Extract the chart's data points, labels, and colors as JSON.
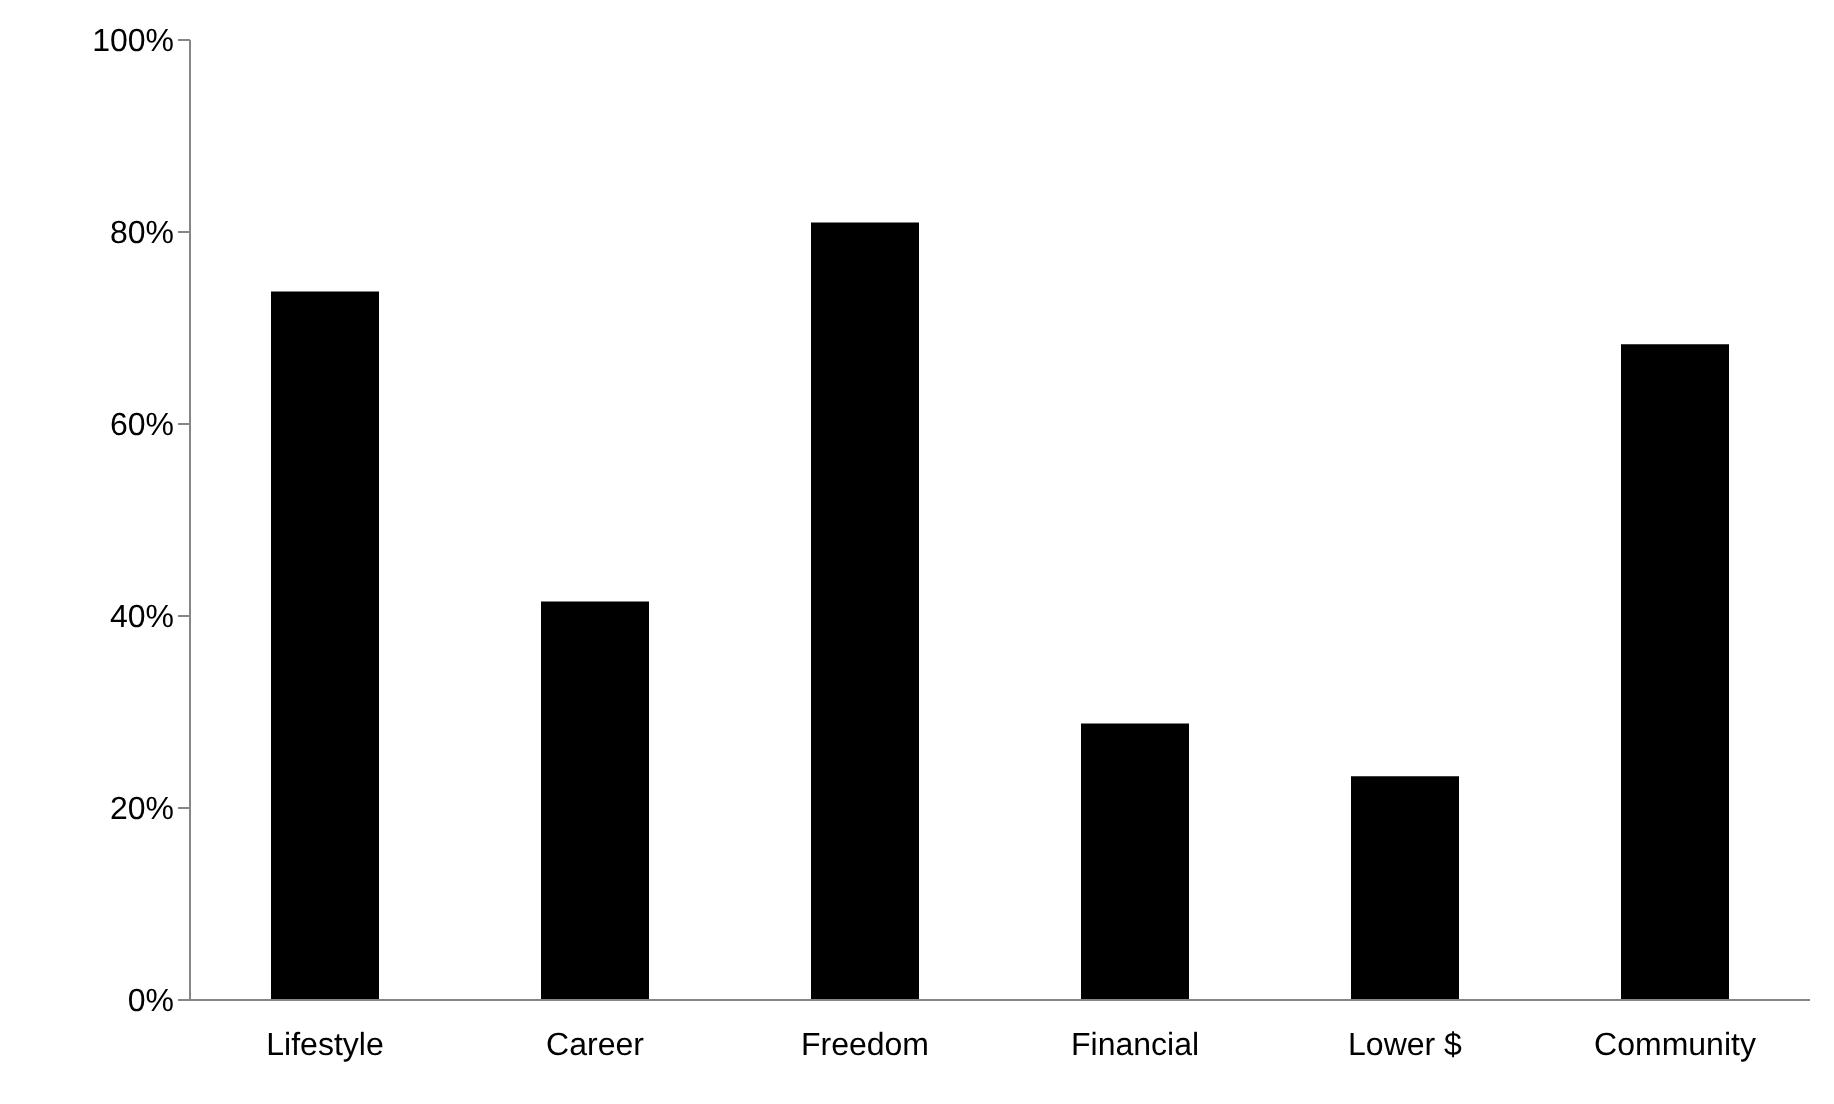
{
  "chart_data": {
    "type": "bar",
    "categories": [
      "Lifestyle",
      "Career",
      "Freedom",
      "Financial",
      "Lower $",
      "Community"
    ],
    "values": [
      73.8,
      41.5,
      81,
      28.8,
      23.3,
      68.3
    ],
    "color": "#000000",
    "ylim": [
      0,
      100
    ],
    "yticks": [
      {
        "value": 0,
        "label": "0%"
      },
      {
        "value": 20,
        "label": "20%"
      },
      {
        "value": 40,
        "label": "40%"
      },
      {
        "value": 60,
        "label": "60%"
      },
      {
        "value": 80,
        "label": "80%"
      },
      {
        "value": 100,
        "label": "100%"
      }
    ],
    "grid": false,
    "legend": false
  }
}
